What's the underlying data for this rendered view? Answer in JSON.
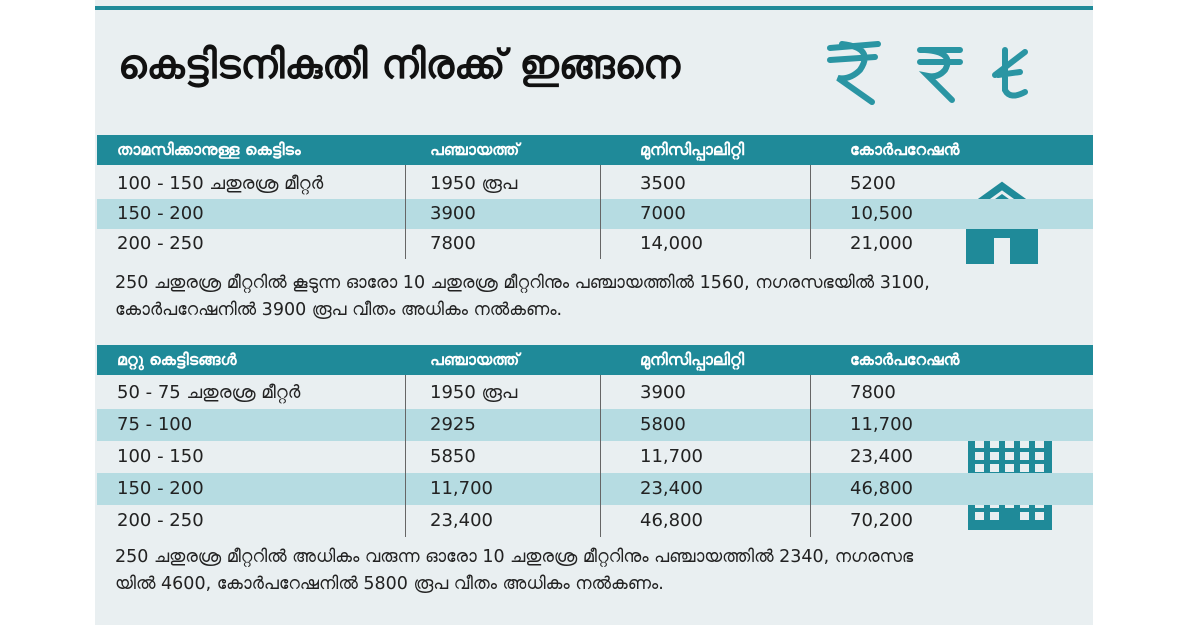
{
  "title": "കെട്ടിടനികുതി നിരക്ക് ഇങ്ങനെ",
  "tables": [
    {
      "header": [
        "താമസിക്കാനുള്ള കെട്ടിടം",
        "പഞ്ചായത്ത്",
        "മുനിസിപ്പാലിറ്റി",
        "കോർപറേഷൻ"
      ],
      "rows": [
        [
          "100 - 150 ചതുരശ്ര മീറ്റർ",
          "1950 രൂപ",
          "3500",
          "5200"
        ],
        [
          "150 - 200",
          "3900",
          "7000",
          "10,500"
        ],
        [
          "200 - 250",
          "7800",
          "14,000",
          "21,000"
        ]
      ],
      "note": [
        "250 ചതുരശ്ര മീറ്ററിൽ കൂടുന്ന ഓരോ 10 ചതുരശ്ര മീറ്ററിനും പഞ്ചായത്തിൽ 1560, നഗരസഭയിൽ 3100,",
        "കോർപറേഷനിൽ 3900 രൂപ വീതം അധികം നൽകണം."
      ]
    },
    {
      "header": [
        "മറ്റു കെട്ടിടങ്ങൾ",
        "പഞ്ചായത്ത്",
        "മുനിസിപ്പാലിറ്റി",
        "കോർപറേഷൻ"
      ],
      "rows": [
        [
          "50 - 75 ചതുരശ്ര മീറ്റർ",
          "1950 രൂപ",
          "3900",
          "7800"
        ],
        [
          "75 - 100",
          "2925",
          "5800",
          "11,700"
        ],
        [
          "100 - 150",
          "5850",
          "11,700",
          "23,400"
        ],
        [
          "150 - 200",
          "11,700",
          "23,400",
          "46,800"
        ],
        [
          "200 - 250",
          "23,400",
          "46,800",
          "70,200"
        ]
      ],
      "note": [
        "250 ചതുരശ്ര മീറ്ററിൽ അധികം വരുന്ന ഓരോ 10 ചതുരശ്ര മീറ്ററിനും പഞ്ചായത്തിൽ 2340, നഗരസഭ",
        "യിൽ 4600, കോർപറേഷനിൽ 5800 രൂപ വീതം അധികം നൽകണം."
      ]
    }
  ]
}
